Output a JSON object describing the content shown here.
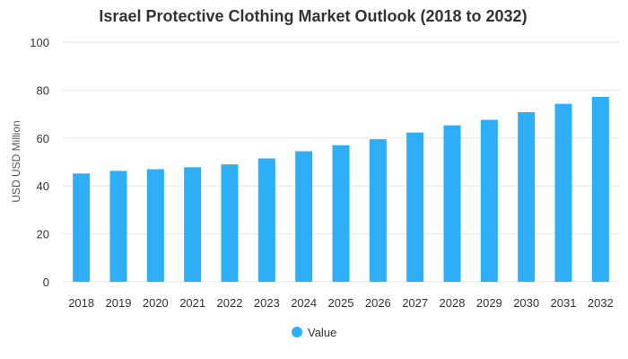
{
  "chart_data": {
    "type": "bar",
    "title": "Israel Protective Clothing Market Outlook (2018 to 2032)",
    "xlabel": "",
    "ylabel": "USD USD Million",
    "ylim": [
      0,
      100
    ],
    "yticks": [
      0,
      20,
      40,
      60,
      80,
      100
    ],
    "categories": [
      "2018",
      "2019",
      "2020",
      "2021",
      "2022",
      "2023",
      "2024",
      "2025",
      "2026",
      "2027",
      "2028",
      "2029",
      "2030",
      "2031",
      "2032"
    ],
    "series": [
      {
        "name": "Value",
        "color": "#2eaef7",
        "values": [
          45.2,
          46.3,
          47.0,
          47.8,
          49.0,
          51.5,
          54.5,
          57.0,
          59.5,
          62.3,
          65.3,
          67.6,
          70.8,
          74.3,
          77.2
        ]
      }
    ],
    "grid": true,
    "legend": "bottom-center"
  }
}
